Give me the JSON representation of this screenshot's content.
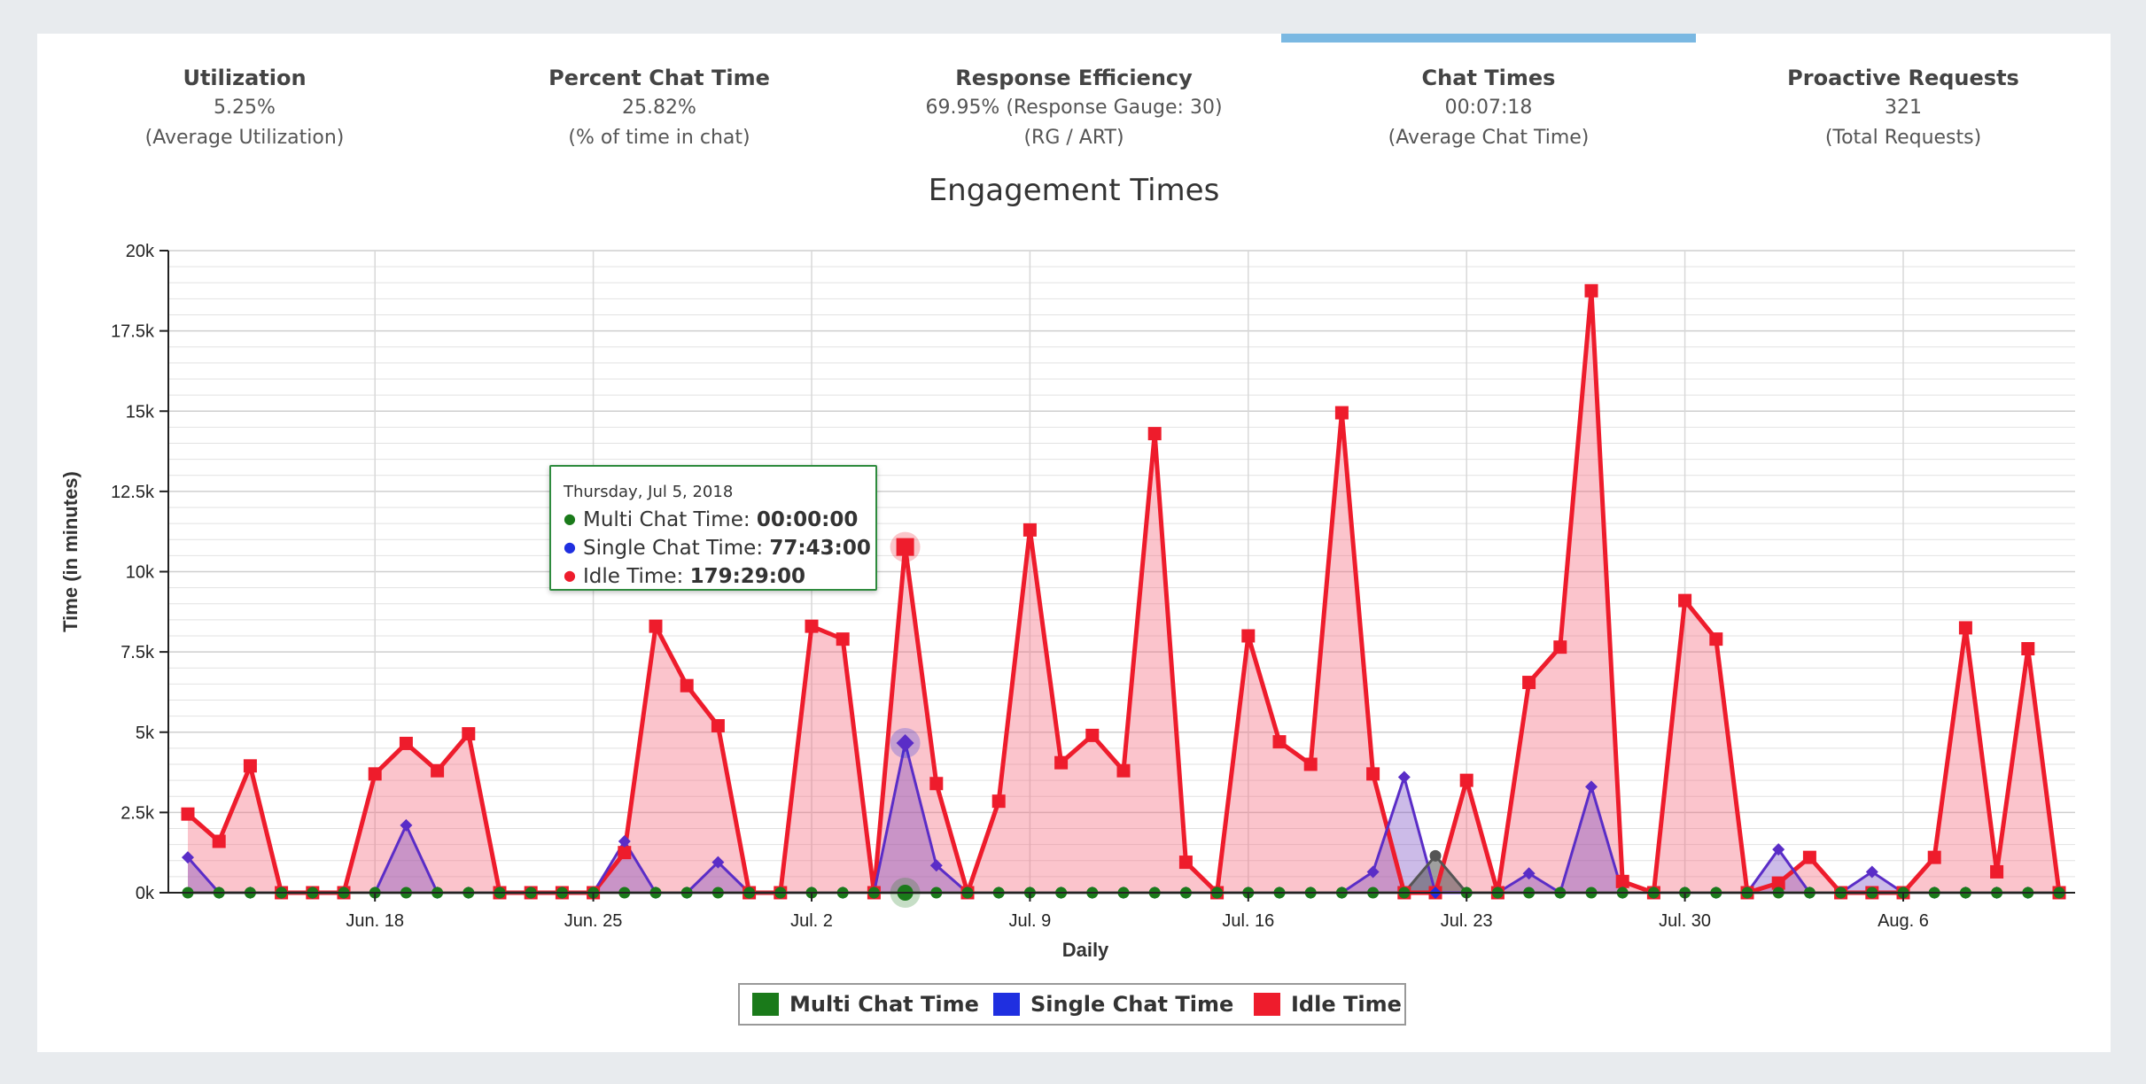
{
  "kpis": [
    {
      "title": "Utilization",
      "value": "5.25%",
      "sub": "(Average Utilization)",
      "active": false
    },
    {
      "title": "Percent Chat Time",
      "value": "25.82%",
      "sub": "(% of time in chat)",
      "active": false
    },
    {
      "title": "Response Efficiency",
      "value": "69.95% (Response Gauge: 30)",
      "sub": "(RG / ART)",
      "active": false
    },
    {
      "title": "Chat Times",
      "value": "00:07:18",
      "sub": "(Average Chat Time)",
      "active": true
    },
    {
      "title": "Proactive Requests",
      "value": "321",
      "sub": "(Total Requests)",
      "active": false
    }
  ],
  "tooltip": {
    "date": "Thursday, Jul 5, 2018",
    "rows": [
      {
        "label": "Multi Chat Time:",
        "value": "00:00:00",
        "color": "#1a7a1a"
      },
      {
        "label": "Single Chat Time:",
        "value": "77:43:00",
        "color": "#1f2fe0"
      },
      {
        "label": "Idle Time:",
        "value": "179:29:00",
        "color": "#ee1c2c"
      }
    ]
  },
  "legend": [
    {
      "name": "Multi Chat Time",
      "color": "#1a7a1a"
    },
    {
      "name": "Single Chat Time",
      "color": "#1f2fe0"
    },
    {
      "name": "Idle Time",
      "color": "#ee1c2c"
    }
  ],
  "chart_data": {
    "type": "area",
    "title": "Engagement Times",
    "xlabel": "Daily",
    "ylabel": "Time (in minutes)",
    "ylim": [
      0,
      20000
    ],
    "yticks": [
      0,
      2500,
      5000,
      7500,
      10000,
      12500,
      15000,
      17500,
      20000
    ],
    "ytick_labels": [
      "0k",
      "2.5k",
      "5k",
      "7.5k",
      "10k",
      "12.5k",
      "15k",
      "17.5k",
      "20k"
    ],
    "x": [
      "Jun. 12",
      "Jun. 13",
      "Jun. 14",
      "Jun. 15",
      "Jun. 16",
      "Jun. 17",
      "Jun. 18",
      "Jun. 19",
      "Jun. 20",
      "Jun. 21",
      "Jun. 22",
      "Jun. 23",
      "Jun. 24",
      "Jun. 25",
      "Jun. 26",
      "Jun. 27",
      "Jun. 28",
      "Jun. 29",
      "Jun. 30",
      "Jul. 1",
      "Jul. 2",
      "Jul. 3",
      "Jul. 4",
      "Jul. 5",
      "Jul. 6",
      "Jul. 7",
      "Jul. 8",
      "Jul. 9",
      "Jul. 10",
      "Jul. 11",
      "Jul. 12",
      "Jul. 13",
      "Jul. 14",
      "Jul. 15",
      "Jul. 16",
      "Jul. 17",
      "Jul. 18",
      "Jul. 19",
      "Jul. 20",
      "Jul. 21",
      "Jul. 22",
      "Jul. 23",
      "Jul. 24",
      "Jul. 25",
      "Jul. 26",
      "Jul. 27",
      "Jul. 28",
      "Jul. 29",
      "Jul. 30",
      "Jul. 31",
      "Aug. 1",
      "Aug. 2",
      "Aug. 3",
      "Aug. 4",
      "Aug. 5",
      "Aug. 6",
      "Aug. 7",
      "Aug. 8",
      "Aug. 9",
      "Aug. 10",
      "Aug. 11"
    ],
    "xtick_labels": [
      {
        "index": 6,
        "label": "Jun. 18"
      },
      {
        "index": 13,
        "label": "Jun. 25"
      },
      {
        "index": 20,
        "label": "Jul. 2"
      },
      {
        "index": 27,
        "label": "Jul. 9"
      },
      {
        "index": 34,
        "label": "Jul. 16"
      },
      {
        "index": 41,
        "label": "Jul. 23"
      },
      {
        "index": 48,
        "label": "Jul. 30"
      },
      {
        "index": 55,
        "label": "Aug. 6"
      }
    ],
    "highlight_index": 23,
    "series": [
      {
        "name": "Multi Chat Time",
        "color": "#1a7a1a",
        "marker": "circle",
        "values": [
          0,
          0,
          0,
          0,
          0,
          0,
          0,
          0,
          0,
          0,
          0,
          0,
          0,
          0,
          0,
          0,
          0,
          0,
          0,
          0,
          0,
          0,
          0,
          0,
          0,
          0,
          0,
          0,
          0,
          0,
          0,
          0,
          0,
          0,
          0,
          0,
          0,
          0,
          0,
          0,
          1150,
          0,
          0,
          0,
          0,
          0,
          0,
          0,
          0,
          0,
          0,
          0,
          0,
          0,
          0,
          0,
          0,
          0,
          0,
          0,
          0
        ]
      },
      {
        "name": "Single Chat Time",
        "color": "#1f2fe0",
        "marker": "diamond",
        "values": [
          1100,
          0,
          0,
          0,
          0,
          0,
          0,
          2100,
          0,
          0,
          0,
          0,
          0,
          0,
          1600,
          0,
          0,
          950,
          0,
          0,
          0,
          0,
          0,
          4663,
          850,
          0,
          0,
          0,
          0,
          0,
          0,
          0,
          0,
          0,
          0,
          0,
          0,
          0,
          650,
          3600,
          0,
          0,
          0,
          600,
          0,
          3300,
          0,
          0,
          0,
          0,
          0,
          1350,
          0,
          0,
          650,
          0,
          0,
          0,
          0,
          0,
          0
        ]
      },
      {
        "name": "Idle Time",
        "color": "#ee1c2c",
        "marker": "square",
        "values": [
          2450,
          1600,
          3950,
          0,
          0,
          0,
          3700,
          4650,
          3800,
          4950,
          0,
          0,
          0,
          0,
          1250,
          8300,
          6450,
          5200,
          0,
          0,
          8300,
          7900,
          0,
          10769,
          3400,
          0,
          2850,
          11300,
          4050,
          4900,
          3800,
          14300,
          950,
          0,
          8000,
          4700,
          4000,
          14950,
          3700,
          0,
          0,
          3500,
          0,
          6550,
          7650,
          18750,
          350,
          0,
          9100,
          7900,
          0,
          300,
          1100,
          0,
          0,
          0,
          1100,
          8250,
          650,
          7600,
          0
        ]
      }
    ],
    "grid": true,
    "legend_position": "bottom"
  }
}
